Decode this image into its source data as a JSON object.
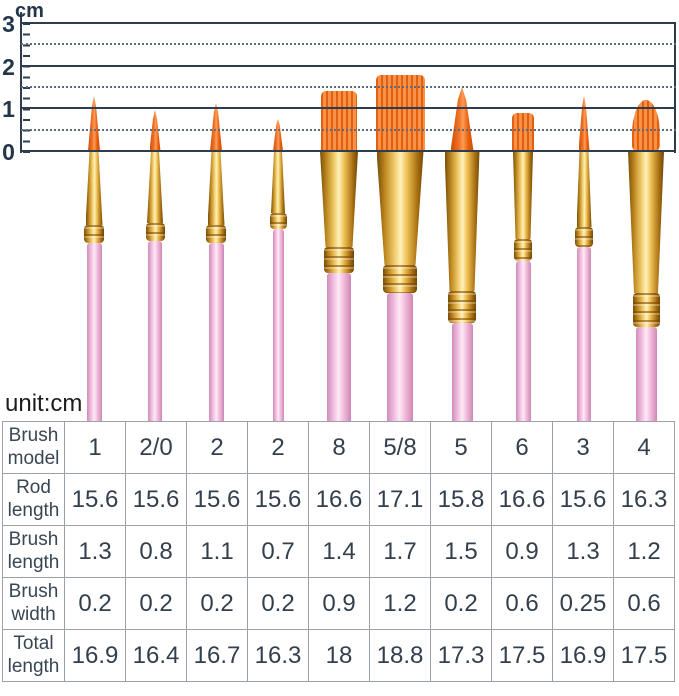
{
  "unit_note": "unit:cm",
  "colors": {
    "ruler_line": "#2d3c4e",
    "table_border": "#9aa1a8",
    "bristle_orange": "#f07a33",
    "ferrule_gold": "#eebf52",
    "handle_pink": "#f2bfdd"
  },
  "chart_data": {
    "type": "table",
    "unit": "cm",
    "ruler": {
      "label": "cm",
      "range": [
        0,
        3
      ],
      "major_lines": [
        0,
        1,
        2,
        3
      ],
      "dashed_lines": [
        0.5,
        1.5,
        2.5
      ],
      "tick_labels": [
        "3",
        "2",
        "1",
        "0"
      ]
    },
    "rows": [
      {
        "label": "Brush\nmodel",
        "values": [
          "1",
          "2/0",
          "2",
          "2",
          "8",
          "5/8",
          "5",
          "6",
          "3",
          "4"
        ]
      },
      {
        "label": "Rod\nlength",
        "values": [
          15.6,
          15.6,
          15.6,
          15.6,
          16.6,
          17.1,
          15.8,
          16.6,
          15.6,
          16.3
        ]
      },
      {
        "label": "Brush\nlength",
        "values": [
          1.3,
          0.8,
          1.1,
          0.7,
          1.4,
          1.7,
          1.5,
          0.9,
          1.3,
          1.2
        ]
      },
      {
        "label": "Brush\nwidth",
        "values": [
          0.2,
          0.2,
          0.2,
          0.2,
          0.9,
          1.2,
          0.2,
          0.6,
          0.25,
          0.6
        ]
      },
      {
        "label": "Total\nlength",
        "values": [
          16.9,
          16.4,
          16.7,
          16.3,
          18,
          18.8,
          17.3,
          17.5,
          16.9,
          17.5
        ]
      }
    ]
  }
}
